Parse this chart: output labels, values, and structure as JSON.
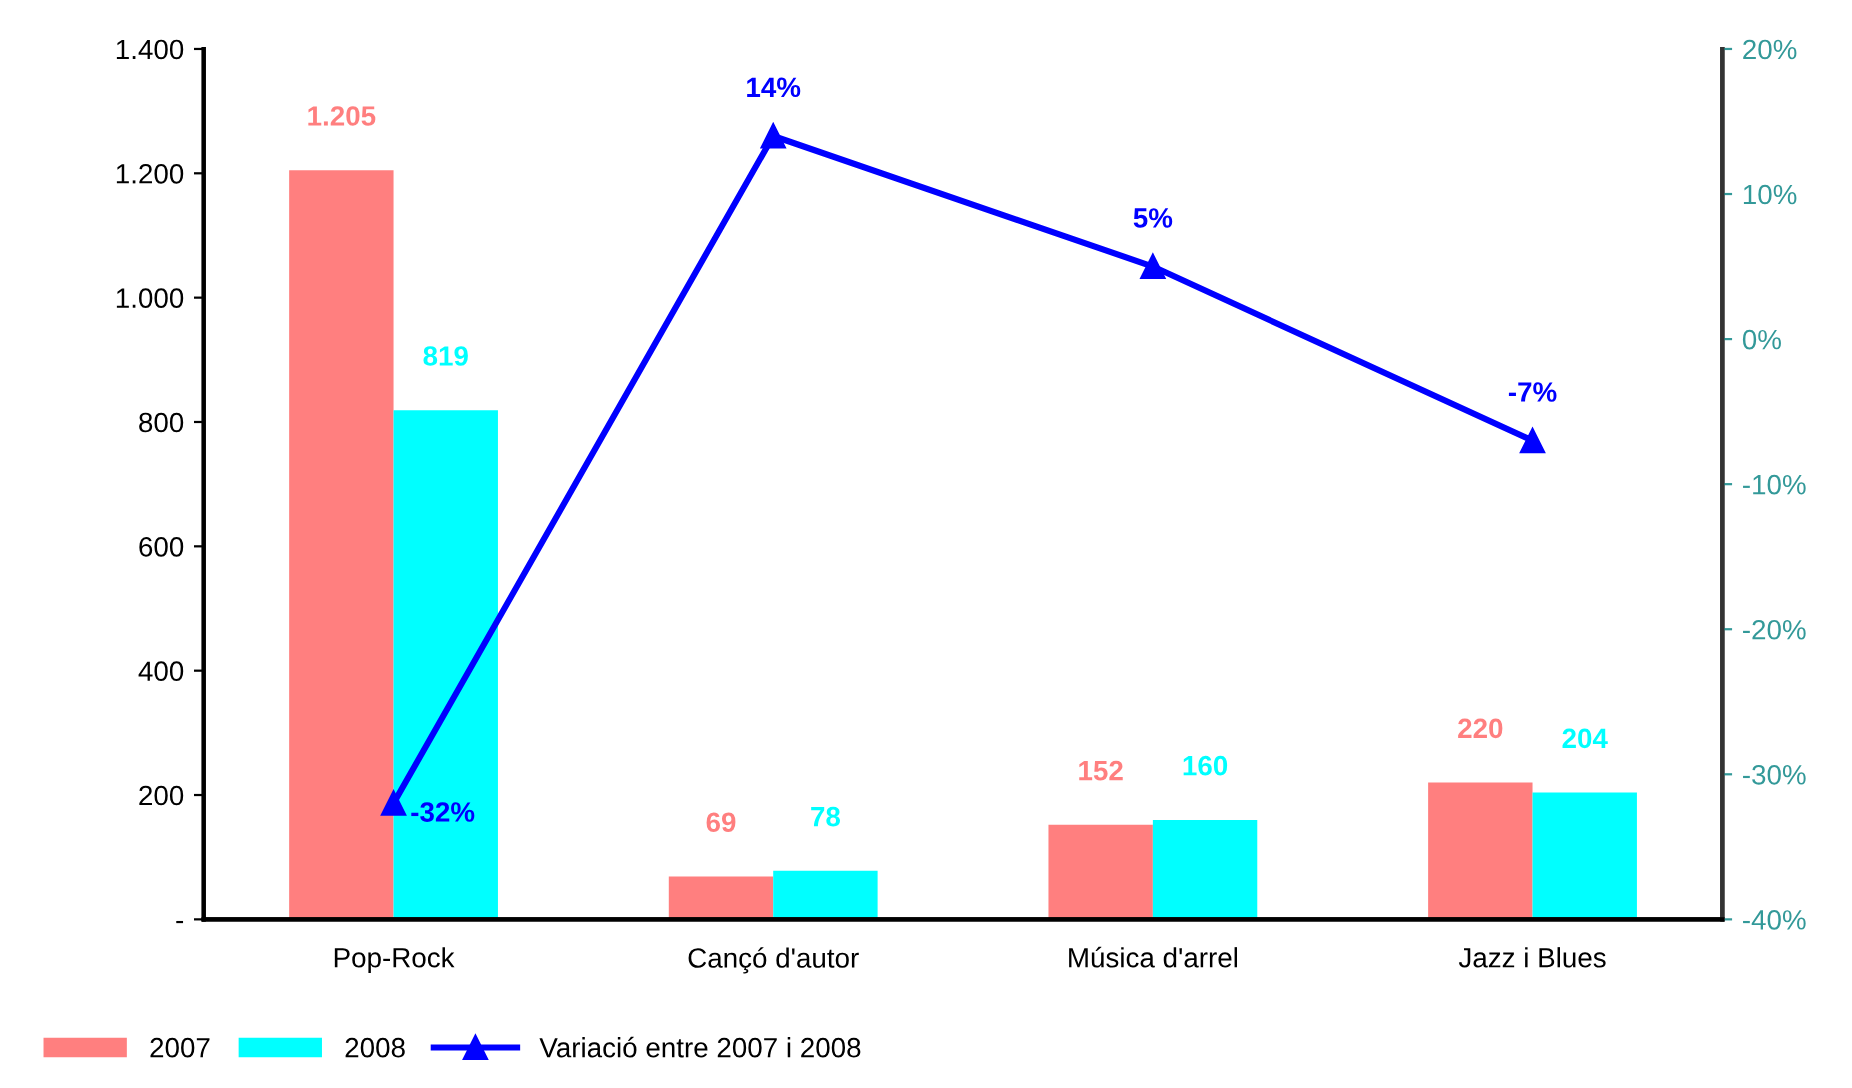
{
  "chart_data": {
    "type": "bar",
    "categories": [
      "Pop-Rock",
      "Cançó d'autor",
      "Música d'arrel",
      "Jazz i Blues"
    ],
    "series": [
      {
        "name": "2007",
        "color": "#ff7f7f",
        "values": [
          1205,
          69,
          152,
          220
        ],
        "value_labels": [
          "1.205",
          "69",
          "152",
          "220"
        ]
      },
      {
        "name": "2008",
        "color": "#00ffff",
        "values": [
          819,
          78,
          160,
          204
        ],
        "value_labels": [
          "819",
          "78",
          "160",
          "204"
        ]
      },
      {
        "name": "Variació entre 2007 i 2008",
        "type": "line",
        "axis": "y2",
        "color": "#0000ff",
        "values": [
          -32,
          14,
          5,
          -7
        ],
        "value_labels": [
          "-32%",
          "14%",
          "5%",
          "-7%"
        ]
      }
    ],
    "ylim": [
      0,
      1400
    ],
    "yticks": [
      {
        "value": 0,
        "label": "-"
      },
      200,
      400,
      600,
      800,
      {
        "value": 1000,
        "label": "1.000"
      },
      {
        "value": 1200,
        "label": "1.200"
      },
      {
        "value": 1400,
        "label": "1.400"
      }
    ],
    "y2lim": [
      -40,
      20
    ],
    "y2ticks": [
      {
        "value": -40,
        "label": "-40%"
      },
      {
        "value": -30,
        "label": "-30%"
      },
      {
        "value": -20,
        "label": "-20%"
      },
      {
        "value": -10,
        "label": "-10%"
      },
      {
        "value": 0,
        "label": "0%"
      },
      {
        "value": 10,
        "label": "10%"
      },
      {
        "value": 20,
        "label": "20%"
      }
    ],
    "marker": "triangle",
    "line_style": "solid",
    "grid": false,
    "legend": "bottom left"
  }
}
